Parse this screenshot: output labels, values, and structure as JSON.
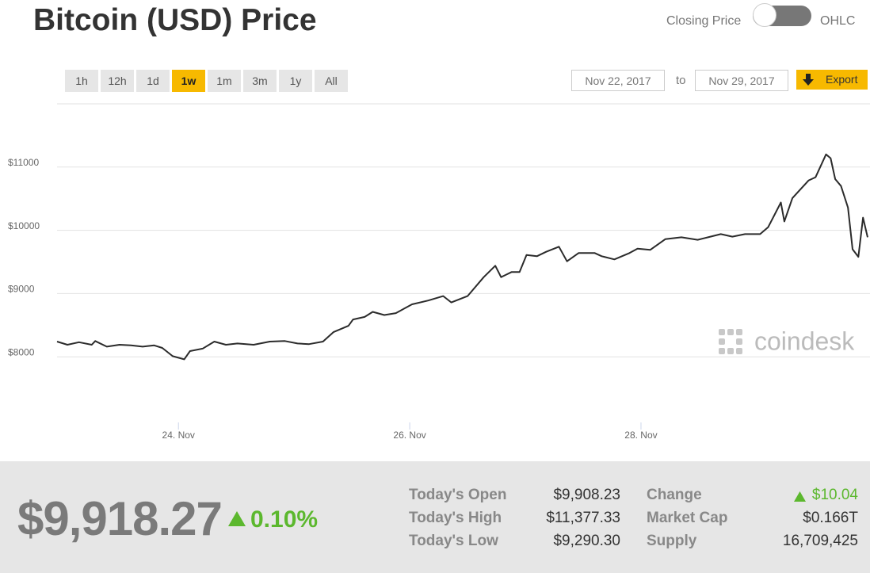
{
  "header": {
    "title": "Bitcoin (USD) Price",
    "toggle_left": "Closing Price",
    "toggle_right": "OHLC"
  },
  "range_buttons": [
    "1h",
    "12h",
    "1d",
    "1w",
    "1m",
    "3m",
    "1y",
    "All"
  ],
  "date_range": {
    "from": "Nov 22, 2017",
    "separator": "to",
    "to": "Nov 29, 2017"
  },
  "export": "Export",
  "chart_data": {
    "type": "line",
    "color": "#2b2b2b",
    "grid": true,
    "watermark": "coindesk",
    "x": [
      22.95,
      23.04,
      23.14,
      23.25,
      23.28,
      23.38,
      23.49,
      23.59,
      23.69,
      23.79,
      23.86,
      23.95,
      24.05,
      24.1,
      24.21,
      24.31,
      24.41,
      24.51,
      24.65,
      24.79,
      24.92,
      25.03,
      25.13,
      25.25,
      25.34,
      25.47,
      25.51,
      25.61,
      25.68,
      25.78,
      25.88,
      26.02,
      26.16,
      26.29,
      26.36,
      26.5,
      26.64,
      26.74,
      26.79,
      26.88,
      26.95,
      27.01,
      27.1,
      27.18,
      27.29,
      27.36,
      27.46,
      27.6,
      27.66,
      27.77,
      27.9,
      27.97,
      28.08,
      28.21,
      28.35,
      28.49,
      28.58,
      28.69,
      28.79,
      28.9,
      29.03,
      29.1,
      29.21,
      29.24,
      29.31,
      29.45,
      29.51,
      29.6,
      29.64,
      29.68,
      29.73,
      29.79,
      29.83,
      29.88,
      29.92,
      29.96
    ],
    "values": [
      8240,
      8190,
      8230,
      8190,
      8250,
      8160,
      8190,
      8180,
      8160,
      8180,
      8140,
      8010,
      7960,
      8090,
      8130,
      8240,
      8190,
      8210,
      8190,
      8240,
      8250,
      8210,
      8200,
      8240,
      8390,
      8490,
      8590,
      8630,
      8710,
      8660,
      8690,
      8830,
      8890,
      8960,
      8860,
      8960,
      9260,
      9440,
      9260,
      9340,
      9340,
      9610,
      9590,
      9660,
      9740,
      9510,
      9640,
      9640,
      9590,
      9540,
      9640,
      9710,
      9690,
      9860,
      9890,
      9850,
      9890,
      9940,
      9900,
      9940,
      9940,
      10050,
      10440,
      10140,
      10510,
      10790,
      10840,
      11200,
      11140,
      10810,
      10700,
      10360,
      9700,
      9580,
      10200,
      9890
    ],
    "xlim": [
      22.95,
      29.96
    ],
    "xticks": [
      {
        "value": 24,
        "label": "24. Nov"
      },
      {
        "value": 26,
        "label": "26. Nov"
      },
      {
        "value": 28,
        "label": "28. Nov"
      }
    ],
    "ylim": [
      7000,
      12000
    ],
    "yticks": [
      {
        "value": 8000,
        "label": "$8000"
      },
      {
        "value": 9000,
        "label": "$9000"
      },
      {
        "value": 10000,
        "label": "$10000"
      },
      {
        "value": 11000,
        "label": "$11000"
      }
    ]
  },
  "summary": {
    "price": "$9,918.27",
    "change_pct": "0.10%",
    "stats": [
      {
        "label": "Today's Open",
        "value": "$9,908.23"
      },
      {
        "label": "Today's High",
        "value": "$11,377.33"
      },
      {
        "label": "Today's Low",
        "value": "$9,290.30"
      },
      {
        "label": "Change",
        "value": "$10.04"
      },
      {
        "label": "Market Cap",
        "value": "$0.166T"
      },
      {
        "label": "Supply",
        "value": "16,709,425"
      }
    ]
  }
}
